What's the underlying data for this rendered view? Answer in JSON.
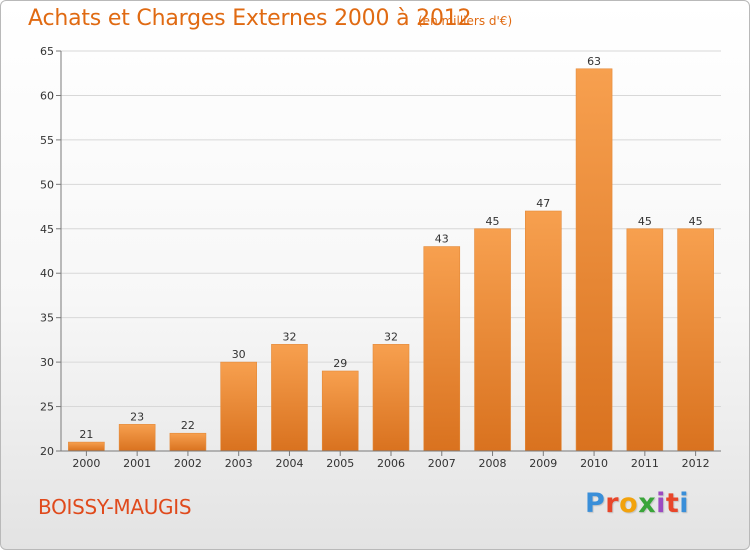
{
  "header": {
    "title": "Achats et Charges Externes 2000 à 2012",
    "unit_note": "(en milliers d'€)"
  },
  "footer": {
    "commune": "BOISSY-MAUGIS",
    "brand": "Proxiti",
    "brand_colors": [
      "#3a8fd9",
      "#e8462a",
      "#f2a20c",
      "#3aa53a",
      "#9c4bc1",
      "#e8462a",
      "#3a8fd9"
    ]
  },
  "colors": {
    "title": "#e06a12",
    "bar_light": "#f7a04f",
    "bar_dark": "#d9721f",
    "axis": "#7a7a7a",
    "grid": "#d8d8d8"
  },
  "chart_data": {
    "type": "bar",
    "title": "Achats et Charges Externes 2000 à 2012",
    "subtitle": "(en milliers d'€)",
    "categories": [
      "2000",
      "2001",
      "2002",
      "2003",
      "2004",
      "2005",
      "2006",
      "2007",
      "2008",
      "2009",
      "2010",
      "2011",
      "2012"
    ],
    "values": [
      21,
      23,
      22,
      30,
      32,
      29,
      32,
      43,
      45,
      47,
      63,
      45,
      45
    ],
    "ylim": [
      20,
      65
    ],
    "yticks": [
      20,
      25,
      30,
      35,
      40,
      45,
      50,
      55,
      60,
      65
    ],
    "grid": true,
    "data_labels": true
  }
}
